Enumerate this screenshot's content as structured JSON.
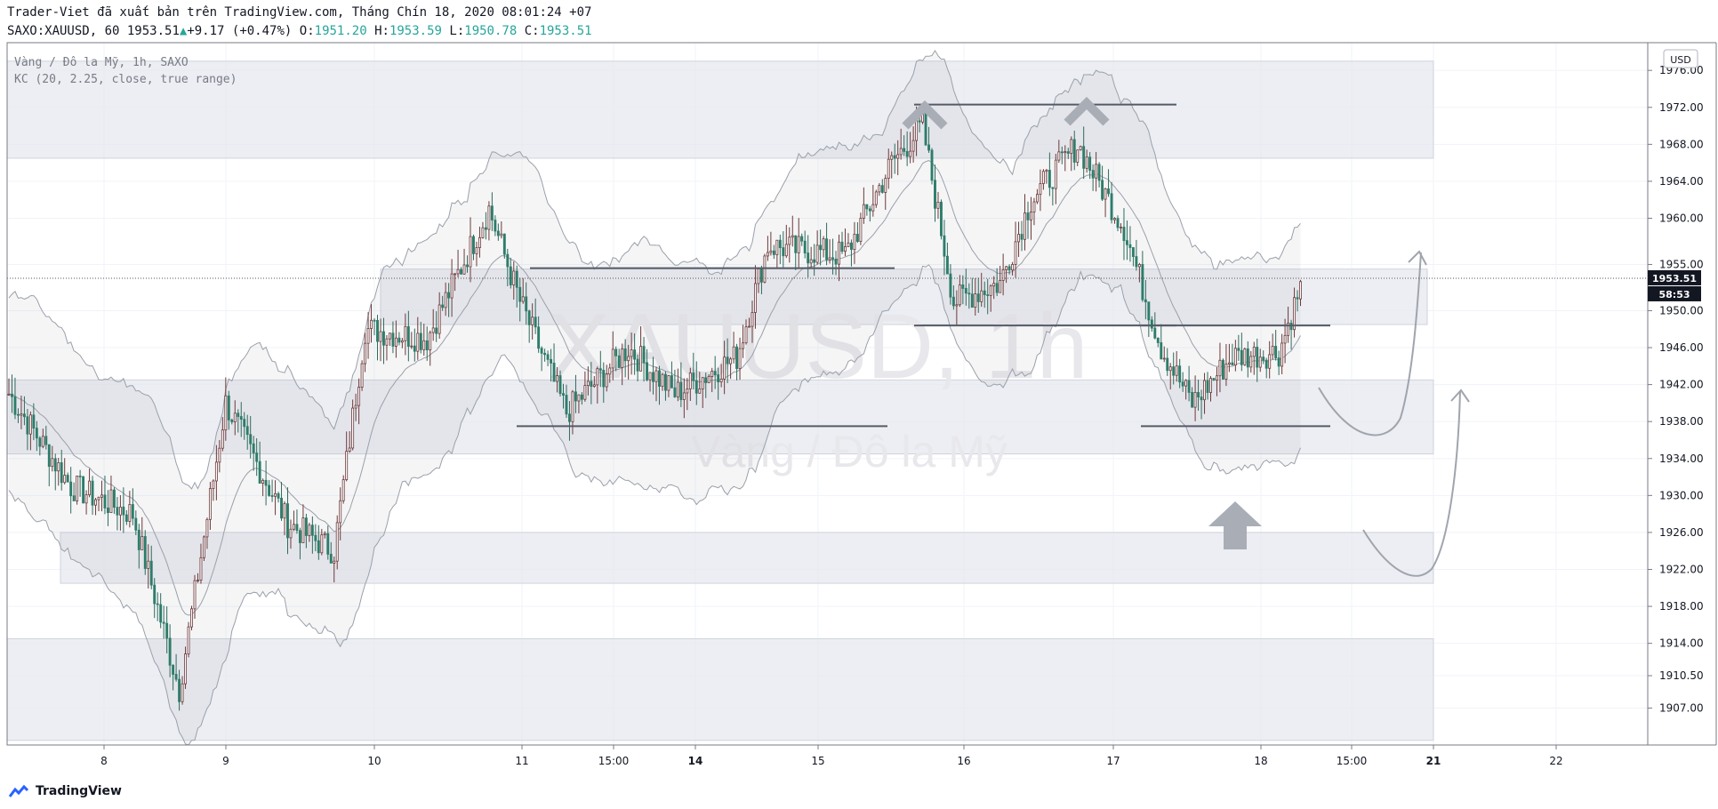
{
  "header": {
    "published_line": "Trader-Viet đã xuất bản trên TradingView.com, Tháng Chín 18, 2020 08:01:24 +07",
    "symbol": "SAXO:XAUUSD, 60",
    "last": "1953.51",
    "change": "+9.17 (+0.47%)",
    "o_label": "O:",
    "o": "1951.20",
    "h_label": "H:",
    "h": "1953.59",
    "l_label": "L:",
    "l": "1950.78",
    "c_label": "C:",
    "c": "1953.51"
  },
  "legend": {
    "title": "Vàng / Đô la Mỹ, 1h, SAXO",
    "indicator": "KC (20, 2.25, close, true range)"
  },
  "watermark": {
    "symbol": "XAUUSD, 1h",
    "name": "Vàng / Đô la Mỹ"
  },
  "currency_button": "USD",
  "price_label": "1953.51",
  "countdown_label": "58:53",
  "brand": "TradingView",
  "colors": {
    "up": "#26a69a",
    "down": "#ef5350",
    "candle_up_fill": "#ffffff",
    "candle_up_border": "#6d3a3a",
    "candle_down": "#2e7d6b",
    "zone": "#e4e7ef",
    "band": "#9aa0aa"
  },
  "chart_data": {
    "type": "candlestick",
    "y_axis": {
      "min": 1903,
      "max": 1979,
      "ticks": [
        "1976.00",
        "1972.00",
        "1968.00",
        "1964.00",
        "1960.00",
        "1955.00",
        "1950.00",
        "1946.00",
        "1942.00",
        "1938.00",
        "1934.00",
        "1930.00",
        "1926.00",
        "1922.00",
        "1918.00",
        "1914.00",
        "1910.50",
        "1907.00"
      ]
    },
    "x_axis": {
      "ticks": [
        "8",
        "9",
        "10",
        "11",
        "15:00",
        "14",
        "15",
        "16",
        "17",
        "18",
        "15:00",
        "21",
        "22"
      ]
    },
    "grid": true,
    "current_price": 1953.51,
    "support_resistance_zones": [
      {
        "from": 1966.5,
        "to": 1977.0
      },
      {
        "from": 1948.5,
        "to": 1954.5
      },
      {
        "from": 1934.5,
        "to": 1942.5
      },
      {
        "from": 1920.5,
        "to": 1926.0
      },
      {
        "from": 1903.5,
        "to": 1914.5
      }
    ],
    "levels": [
      1972.3,
      1954.6,
      1948.4,
      1937.5
    ],
    "anchor_points": [
      {
        "x": 0,
        "price": 1941.0
      },
      {
        "x": 20,
        "price": 1931.0
      },
      {
        "x": 40,
        "price": 1928.0
      },
      {
        "x": 55,
        "price": 1909.0
      },
      {
        "x": 70,
        "price": 1940.0
      },
      {
        "x": 90,
        "price": 1927.0
      },
      {
        "x": 105,
        "price": 1924.0
      },
      {
        "x": 115,
        "price": 1948.0
      },
      {
        "x": 135,
        "price": 1947.0
      },
      {
        "x": 155,
        "price": 1961.0
      },
      {
        "x": 165,
        "price": 1951.0
      },
      {
        "x": 180,
        "price": 1939.0
      },
      {
        "x": 200,
        "price": 1946.0
      },
      {
        "x": 215,
        "price": 1941.0
      },
      {
        "x": 235,
        "price": 1945.0
      },
      {
        "x": 245,
        "price": 1957.0
      },
      {
        "x": 270,
        "price": 1956.0
      },
      {
        "x": 285,
        "price": 1966.0
      },
      {
        "x": 295,
        "price": 1970.0
      },
      {
        "x": 305,
        "price": 1951.0
      },
      {
        "x": 320,
        "price": 1953.0
      },
      {
        "x": 330,
        "price": 1962.0
      },
      {
        "x": 345,
        "price": 1968.0
      },
      {
        "x": 360,
        "price": 1959.0
      },
      {
        "x": 372,
        "price": 1946.0
      },
      {
        "x": 382,
        "price": 1940.0
      },
      {
        "x": 395,
        "price": 1945.0
      },
      {
        "x": 410,
        "price": 1945.5
      },
      {
        "x": 418,
        "price": 1953.5
      }
    ],
    "total_bars": 418
  }
}
